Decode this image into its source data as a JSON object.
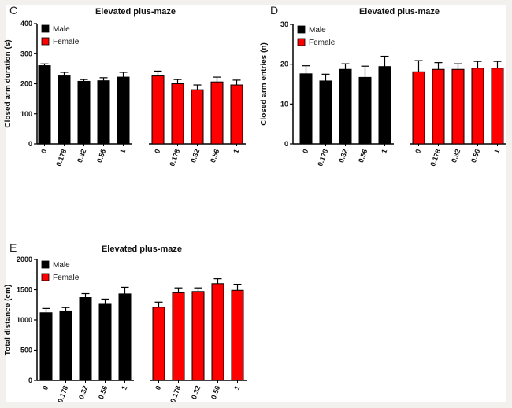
{
  "chart_data": [
    {
      "panel": "C",
      "type": "bar",
      "title": "Elevated plus-maze",
      "xlabel": "",
      "ylabel": "Closed arm duration (s)",
      "ylim": [
        0,
        400
      ],
      "yticks": [
        0,
        100,
        200,
        300,
        400
      ],
      "categories": [
        "0",
        "0.178",
        "0.32",
        "0.56",
        "1"
      ],
      "series": [
        {
          "name": "Male",
          "color": "#000000",
          "values": [
            260,
            226,
            208,
            210,
            222
          ],
          "errors": [
            6,
            12,
            6,
            10,
            16
          ]
        },
        {
          "name": "Female",
          "color": "#ff0000",
          "values": [
            226,
            200,
            180,
            206,
            196
          ],
          "errors": [
            16,
            14,
            16,
            16,
            16
          ]
        }
      ],
      "legend": "top-left",
      "grid": false
    },
    {
      "panel": "D",
      "type": "bar",
      "title": "Elevated plus-maze",
      "xlabel": "",
      "ylabel": "Closed arm entries (n)",
      "ylim": [
        0,
        30
      ],
      "yticks": [
        0,
        10,
        20,
        30
      ],
      "categories": [
        "0",
        "0.178",
        "0.32",
        "0.56",
        "1"
      ],
      "series": [
        {
          "name": "Male",
          "color": "#000000",
          "values": [
            17.6,
            15.8,
            18.7,
            16.7,
            19.4
          ],
          "errors": [
            2.0,
            1.7,
            1.4,
            2.8,
            2.6
          ]
        },
        {
          "name": "Female",
          "color": "#ff0000",
          "values": [
            18.1,
            18.7,
            18.7,
            19.0,
            19.0
          ],
          "errors": [
            2.8,
            1.7,
            1.4,
            1.7,
            1.7
          ]
        }
      ],
      "legend": "top-left",
      "grid": false
    },
    {
      "panel": "E",
      "type": "bar",
      "title": "Elevated plus-maze",
      "xlabel": "",
      "ylabel": "Total distance (cm)",
      "ylim": [
        0,
        2000
      ],
      "yticks": [
        0,
        500,
        1000,
        1500,
        2000
      ],
      "categories": [
        "0",
        "0.178",
        "0.32",
        "0.56",
        "1"
      ],
      "series": [
        {
          "name": "Male",
          "color": "#000000",
          "values": [
            1120,
            1150,
            1370,
            1260,
            1430
          ],
          "errors": [
            70,
            55,
            65,
            85,
            110
          ]
        },
        {
          "name": "Female",
          "color": "#ff0000",
          "values": [
            1210,
            1450,
            1470,
            1600,
            1490
          ],
          "errors": [
            85,
            80,
            60,
            80,
            100
          ]
        }
      ],
      "legend": "top-left",
      "grid": false
    }
  ]
}
